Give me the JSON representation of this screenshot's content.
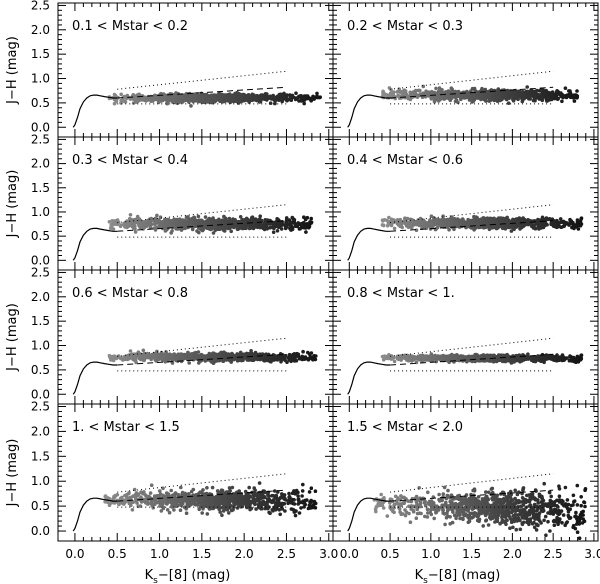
{
  "chart_data": {
    "type": "scatter",
    "layout": "4 rows x 2 columns",
    "xlabel_parts": {
      "main": "K",
      "sub": "s",
      "rest": "−[8] (mag)"
    },
    "ylabel": "J−H (mag)",
    "xlim": [
      -0.2,
      3.05
    ],
    "ylim": [
      -0.2,
      2.55
    ],
    "x_ticks": [
      0.0,
      0.5,
      1.0,
      1.5,
      2.0,
      2.5,
      3.0
    ],
    "x_tick_labels": [
      "0.0",
      "0.5",
      "1.0",
      "1.5",
      "2.0",
      "2.5",
      "3.0"
    ],
    "y_ticks": [
      0.0,
      0.5,
      1.0,
      1.5,
      2.0,
      2.5
    ],
    "y_tick_labels": [
      "0.0",
      "0.5",
      "1.0",
      "1.5",
      "2.0",
      "2.5"
    ],
    "reference_lines": {
      "upper_dotted": {
        "x": [
          0.5,
          2.5
        ],
        "y": [
          0.78,
          1.15
        ]
      },
      "lower_dotted": {
        "x": [
          0.5,
          2.5
        ],
        "y": [
          0.48,
          0.48
        ]
      },
      "dashed": {
        "x": [
          0.5,
          2.5
        ],
        "y": [
          0.6,
          0.82
        ]
      },
      "model_curve": {
        "x": [
          -0.02,
          0.0,
          0.03,
          0.06,
          0.1,
          0.14,
          0.18,
          0.22,
          0.26,
          0.3,
          0.35,
          0.4,
          0.45,
          0.5
        ],
        "y": [
          0.0,
          0.05,
          0.2,
          0.38,
          0.52,
          0.6,
          0.645,
          0.66,
          0.66,
          0.645,
          0.63,
          0.615,
          0.6,
          0.6
        ]
      }
    },
    "panels": [
      {
        "label": "0.1 < Mstar < 0.2",
        "y_center": 0.6,
        "y_spread": 0.04,
        "x_min": 0.4,
        "x_max": 2.9,
        "density_peak": 1.6,
        "spread_grows": 0.0
      },
      {
        "label": "0.2 < Mstar < 0.3",
        "y_center": 0.66,
        "y_spread": 0.05,
        "x_min": 0.4,
        "x_max": 2.8,
        "density_peak": 1.7,
        "spread_grows": 0.0
      },
      {
        "label": "0.3 < Mstar < 0.4",
        "y_center": 0.75,
        "y_spread": 0.06,
        "x_min": 0.4,
        "x_max": 2.8,
        "density_peak": 1.6,
        "spread_grows": 0.0
      },
      {
        "label": "0.4 < Mstar < 0.6",
        "y_center": 0.77,
        "y_spread": 0.05,
        "x_min": 0.4,
        "x_max": 2.85,
        "density_peak": 1.6,
        "spread_grows": 0.0
      },
      {
        "label": "0.6 < Mstar < 0.8",
        "y_center": 0.76,
        "y_spread": 0.04,
        "x_min": 0.4,
        "x_max": 2.85,
        "density_peak": 1.6,
        "spread_grows": 0.0
      },
      {
        "label": "0.8 < Mstar < 1.",
        "y_center": 0.74,
        "y_spread": 0.03,
        "x_min": 0.4,
        "x_max": 2.85,
        "density_peak": 1.6,
        "spread_grows": 0.0
      },
      {
        "label": "1. < Mstar < 1.5",
        "y_center": 0.64,
        "y_spread": 0.07,
        "x_min": 0.35,
        "x_max": 2.85,
        "density_peak": 1.7,
        "spread_grows": 0.05
      },
      {
        "label": "1.5 < Mstar < 2.0",
        "y_center": 0.52,
        "y_spread": 0.09,
        "x_min": 0.3,
        "x_max": 2.9,
        "density_peak": 1.8,
        "spread_grows": 0.12
      }
    ],
    "grid": false,
    "legend": "none"
  }
}
